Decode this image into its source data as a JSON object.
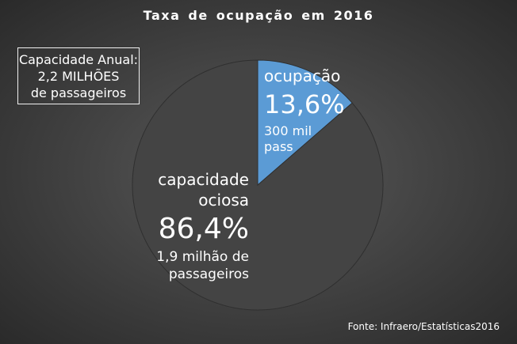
{
  "chart_data": {
    "type": "pie",
    "title": "Taxa  de  ocupação  em  2016",
    "categories": [
      "ocupação",
      "capacidade ociosa"
    ],
    "values": [
      13.6,
      86.4
    ],
    "unit": "%",
    "slices": [
      {
        "name": "ocupação",
        "value": 13.6,
        "value_label": "13,6%",
        "detail": [
          "300 mil",
          "pass"
        ],
        "color": "#5b9bd5"
      },
      {
        "name_lines": [
          "capacidade",
          "ociosa"
        ],
        "value": 86.4,
        "value_label": "86,4%",
        "detail": [
          "1,9 milhão de",
          "passageiros"
        ],
        "color": "#444444"
      }
    ],
    "annotation": [
      "Capacidade Anual:",
      "2,2 MILHÕES",
      "de passageiros"
    ],
    "source": "Fonte:  Infraero/Estatísticas2016",
    "legend": "none"
  },
  "colors": {
    "background": "#3f3f3f",
    "text": "#ffffff",
    "slice_border": "#2f2f2f"
  }
}
